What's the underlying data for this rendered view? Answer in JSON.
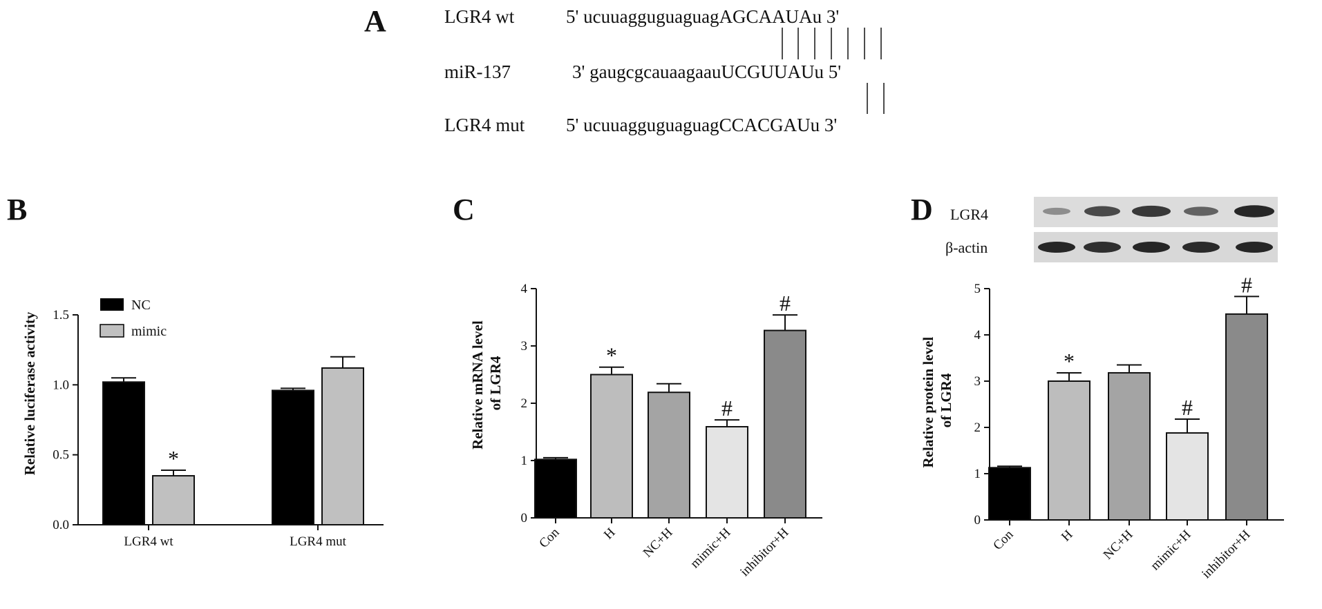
{
  "panels": {
    "a": "A",
    "b": "B",
    "c": "C",
    "d": "D"
  },
  "sequence": {
    "rows": [
      {
        "name": "LGR4 wt",
        "prefix": "5' ucuuagguguaguag",
        "core": "AGCAAUA",
        "suffix": "u 3'"
      },
      {
        "name": "miR-137",
        "prefix": "3' gaugcgcauaagaau",
        "core": "UCGUUAU",
        "suffix": "u 5'"
      },
      {
        "name": "LGR4 mut",
        "prefix": "5' ucuuagguguaguag",
        "core": "CCACGAU",
        "suffix": "u 3'"
      }
    ]
  },
  "blot": {
    "labels": [
      "LGR4",
      "β-actin"
    ],
    "lgr4_intensity": [
      0.35,
      0.75,
      0.85,
      0.6,
      0.95
    ],
    "actin_intensity": [
      0.9,
      0.85,
      0.9,
      0.88,
      0.9
    ]
  },
  "chart_data": [
    {
      "type": "bar",
      "panel": "B",
      "ylabel": "Relative luciferase activity",
      "xlabel": "",
      "categories": [
        "LGR4 wt",
        "LGR4 mut"
      ],
      "ylim": [
        0,
        1.5
      ],
      "yticks": [
        "0.0",
        "0.5",
        "1.0",
        "1.5"
      ],
      "legend_position": "top-left",
      "series": [
        {
          "name": "NC",
          "color": "#000000",
          "values": [
            1.02,
            0.96
          ],
          "errors": [
            0.03,
            0.015
          ]
        },
        {
          "name": "mimic",
          "color": "#c0c0c0",
          "values": [
            0.35,
            1.12
          ],
          "errors": [
            0.04,
            0.08
          ]
        }
      ],
      "annotations": [
        {
          "series": 1,
          "index": 0,
          "text": "*"
        }
      ]
    },
    {
      "type": "bar",
      "panel": "C",
      "ylabel": "Relative mRNA level of LGR4",
      "ylabel_lines": [
        "Relative mRNA level",
        "of LGR4"
      ],
      "xlabel": "",
      "categories": [
        "Con",
        "H",
        "NC+H",
        "mimic+H",
        "inhibitor+H"
      ],
      "values": [
        1.02,
        2.5,
        2.19,
        1.59,
        3.27
      ],
      "errors": [
        0.03,
        0.13,
        0.15,
        0.12,
        0.27
      ],
      "colors": [
        "#000000",
        "#bdbdbd",
        "#a4a4a4",
        "#e4e4e4",
        "#8a8a8a"
      ],
      "ylim": [
        0,
        4
      ],
      "yticks": [
        "0",
        "1",
        "2",
        "3",
        "4"
      ],
      "annotations": [
        {
          "index": 1,
          "text": "*"
        },
        {
          "index": 3,
          "text": "#"
        },
        {
          "index": 4,
          "text": "#"
        }
      ]
    },
    {
      "type": "bar",
      "panel": "D",
      "ylabel": "Relative protein level of LGR4",
      "ylabel_lines": [
        "Relative protein level",
        "of LGR4"
      ],
      "xlabel": "",
      "categories": [
        "Con",
        "H",
        "NC+H",
        "mimic+H",
        "inhibitor+H"
      ],
      "values": [
        1.13,
        3.0,
        3.18,
        1.88,
        4.45
      ],
      "errors": [
        0.03,
        0.18,
        0.17,
        0.3,
        0.38
      ],
      "colors": [
        "#000000",
        "#bdbdbd",
        "#a4a4a4",
        "#e4e4e4",
        "#8a8a8a"
      ],
      "ylim": [
        0,
        5
      ],
      "yticks": [
        "0",
        "1",
        "2",
        "3",
        "4",
        "5"
      ],
      "annotations": [
        {
          "index": 1,
          "text": "*"
        },
        {
          "index": 3,
          "text": "#"
        },
        {
          "index": 4,
          "text": "#"
        }
      ]
    }
  ]
}
